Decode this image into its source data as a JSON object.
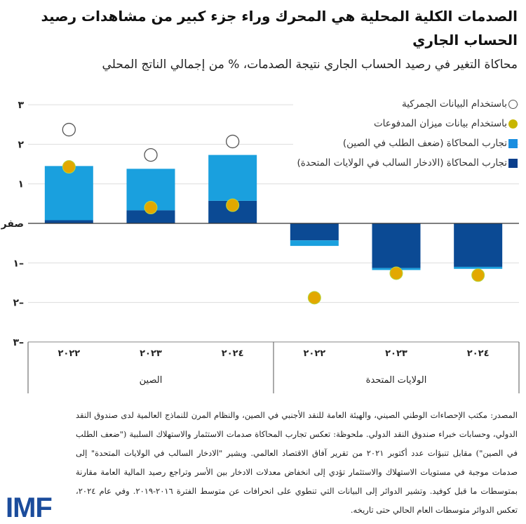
{
  "title": "الصدمات الكلية المحلية هي المحرك وراء جزء كبير من مشاهدات رصيد الحساب الجاري",
  "subtitle": "محاكاة التغير في رصيد الحساب الجاري نتيجة الصدمات، % من إجمالي الناتج المحلي",
  "chart_data": {
    "type": "bar",
    "stacked": true,
    "ylim": [
      -3,
      3
    ],
    "yticks": [
      3,
      2,
      1,
      0,
      -1,
      -2,
      -3
    ],
    "ytick_labels": [
      "٣",
      "٢",
      "١",
      "صفر",
      "١–",
      "٢–",
      "٣–"
    ],
    "grid": true,
    "legend_position": "top-right",
    "categories": [
      "٢٠٢٢",
      "٢٠٢٣",
      "٢٠٢٤",
      "٢٠٢٢",
      "٢٠٢٣",
      "٢٠٢٤"
    ],
    "groups": [
      "الصين",
      "الولايات المتحدة"
    ],
    "series": [
      {
        "name": "تجارب المحاكاة (الادخار السالب في الولايات المتحدة)",
        "kind": "bar",
        "color": "#0b4a94",
        "values": [
          0.08,
          0.33,
          0.57,
          -0.43,
          -1.13,
          -1.1
        ]
      },
      {
        "name": "تجارب المحاكاة (ضعف الطلب في الصين)",
        "kind": "bar",
        "color": "#1aa0de",
        "values": [
          1.37,
          1.05,
          1.16,
          -0.14,
          -0.05,
          -0.05
        ]
      },
      {
        "name": "باستخدام بيانات ميزان المدفوعات",
        "kind": "point",
        "color": "#e2a800",
        "values": [
          1.43,
          0.4,
          0.46,
          -1.88,
          -1.26,
          -1.31
        ]
      },
      {
        "name": "باستخدام البيانات الجمركية",
        "kind": "hollow-point",
        "color": "#555555",
        "values": [
          2.37,
          1.73,
          2.07,
          null,
          null,
          null
        ]
      }
    ]
  },
  "footnote": "المصدر: مكتب الإحصاءات الوطني الصيني، والهيئة العامة للنقد الأجنبي في الصين، والنظام المرن للنماذج العالمية لدى صندوق النقد الدولي، وحسابات خبراء صندوق النقد الدولي. ملحوظة: تعكس تجارب المحاكاة صدمات الاستثمار والاستهلاك السلبية (\"ضعف الطلب في الصين\") مقابل تنبؤات عدد أكتوبر ٢٠٢١ من تقرير آفاق الاقتصاد العالمي. ويشير \"الادخار السالب في الولايات المتحدة\" إلى صدمات موجبة في مستويات الاستهلاك والاستثمار تؤدي إلى انخفاض معدلات الادخار بين الأسر وتراجع رصيد المالية العامة مقارنة بمتوسطات ما قبل كوفيد. وتشير الدوائر إلى البيانات التي تنطوي على انحرافات عن متوسط الفترة ٢٠١٦-٢٠١٩. وفي عام ٢٠٢٤، تعكس الدوائر متوسطات العام الحالي حتى تاريخه.",
  "logo": "IMF"
}
